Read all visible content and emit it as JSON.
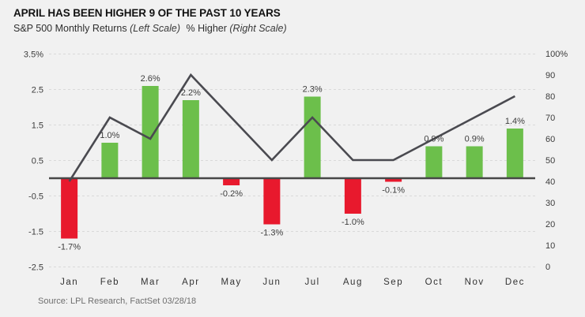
{
  "header": {
    "title": "APRIL HAS BEEN HIGHER 9 OF THE PAST 10 YEARS",
    "legend": [
      {
        "label": "S&P 500 Monthly Returns",
        "scale_note": "(Left Scale)"
      },
      {
        "label": "% Higher",
        "scale_note": "(Right Scale)"
      }
    ]
  },
  "chart_data": {
    "type": "bar+line",
    "categories": [
      "Jan",
      "Feb",
      "Mar",
      "Apr",
      "May",
      "Jun",
      "Jul",
      "Aug",
      "Sep",
      "Oct",
      "Nov",
      "Dec"
    ],
    "series": [
      {
        "name": "S&P 500 Monthly Returns",
        "type": "bar",
        "axis": "left",
        "values": [
          -1.7,
          1.0,
          2.6,
          2.2,
          -0.2,
          -1.3,
          2.3,
          -1.0,
          -0.1,
          0.9,
          0.9,
          1.4
        ],
        "data_labels": [
          "-1.7%",
          "1.0%",
          "2.6%",
          "2.2%",
          "-0.2%",
          "-1.3%",
          "2.3%",
          "-1.0%",
          "-0.1%",
          "0.9%",
          "0.9%",
          "1.4%"
        ],
        "positive_color": "#6cbf4b",
        "negative_color": "#e8192d"
      },
      {
        "name": "% Higher",
        "type": "line",
        "axis": "right",
        "values": [
          40,
          70,
          60,
          90,
          70,
          50,
          70,
          50,
          50,
          60,
          70,
          80
        ],
        "color": "#4a4a50"
      }
    ],
    "left_axis": {
      "ticks": [
        3.5,
        2.5,
        1.5,
        0.5,
        -0.5,
        -1.5,
        -2.5
      ],
      "tick_labels": [
        "3.5%",
        "2.5",
        "1.5",
        "0.5",
        "-0.5",
        "-1.5",
        "-2.5"
      ],
      "range": [
        -2.5,
        3.5
      ]
    },
    "right_axis": {
      "ticks": [
        100,
        90,
        80,
        70,
        60,
        50,
        40,
        30,
        20,
        10,
        0
      ],
      "tick_labels": [
        "100%",
        "90",
        "80",
        "70",
        "60",
        "50",
        "40",
        "30",
        "20",
        "10",
        "0"
      ],
      "range": [
        0,
        100
      ]
    },
    "grid": "horizontal dashed lines at left-axis ticks",
    "zero_line_right_value": 40,
    "legend_position": "top"
  },
  "footer": {
    "source": "Source: LPL Research, FactSet 03/28/18"
  },
  "colors": {
    "background": "#f1f1f1",
    "positive": "#6cbf4b",
    "negative": "#e8192d",
    "line": "#4a4a50",
    "grid": "#d9d9d9",
    "axis": "#474747",
    "text": "#3c3c3c",
    "muted": "#6f6f6f"
  }
}
